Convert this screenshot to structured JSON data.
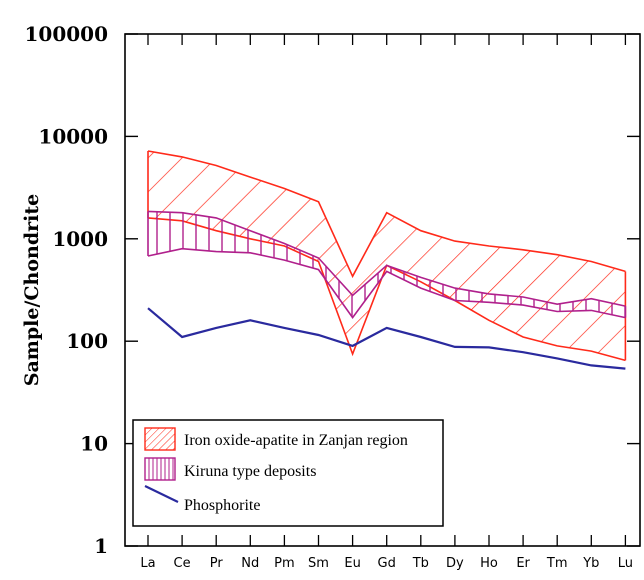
{
  "chart_data": {
    "type": "line",
    "ylabel": "Sample/Chondrite",
    "xlabel": "",
    "y_scale": "log",
    "ylim": [
      1,
      100000
    ],
    "y_ticks": [
      "1",
      "10",
      "100",
      "1000",
      "10000",
      "100000"
    ],
    "categories": [
      "La",
      "Ce",
      "Pr",
      "Nd",
      "Pm",
      "Sm",
      "Eu",
      "Gd",
      "Tb",
      "Dy",
      "Ho",
      "Er",
      "Tm",
      "Yb",
      "Lu"
    ],
    "series": [
      {
        "name": "Iron oxide-apatite in Zanjan region",
        "kind": "band",
        "hatch": "diagonal",
        "color": "#ff2a1a",
        "upper": [
          7200,
          6300,
          5200,
          4000,
          3100,
          2300,
          430,
          1800,
          1200,
          950,
          850,
          780,
          700,
          600,
          480
        ],
        "lower": [
          1600,
          1500,
          1200,
          1000,
          850,
          600,
          75,
          550,
          380,
          250,
          160,
          110,
          90,
          80,
          65
        ]
      },
      {
        "name": "Kiruna type deposits",
        "kind": "band",
        "hatch": "vertical",
        "color": "#b0208c",
        "upper": [
          1850,
          1800,
          1600,
          1200,
          900,
          650,
          280,
          550,
          420,
          330,
          290,
          270,
          230,
          260,
          220
        ],
        "lower": [
          680,
          800,
          750,
          730,
          620,
          500,
          170,
          480,
          330,
          250,
          240,
          225,
          195,
          200,
          170
        ]
      },
      {
        "name": "Phosphorite",
        "kind": "line",
        "color": "#2a2a9e",
        "values": [
          210,
          110,
          135,
          160,
          135,
          115,
          90,
          135,
          110,
          88,
          87,
          78,
          68,
          58,
          54
        ]
      }
    ],
    "legend": "bottom-left",
    "grid": false
  }
}
